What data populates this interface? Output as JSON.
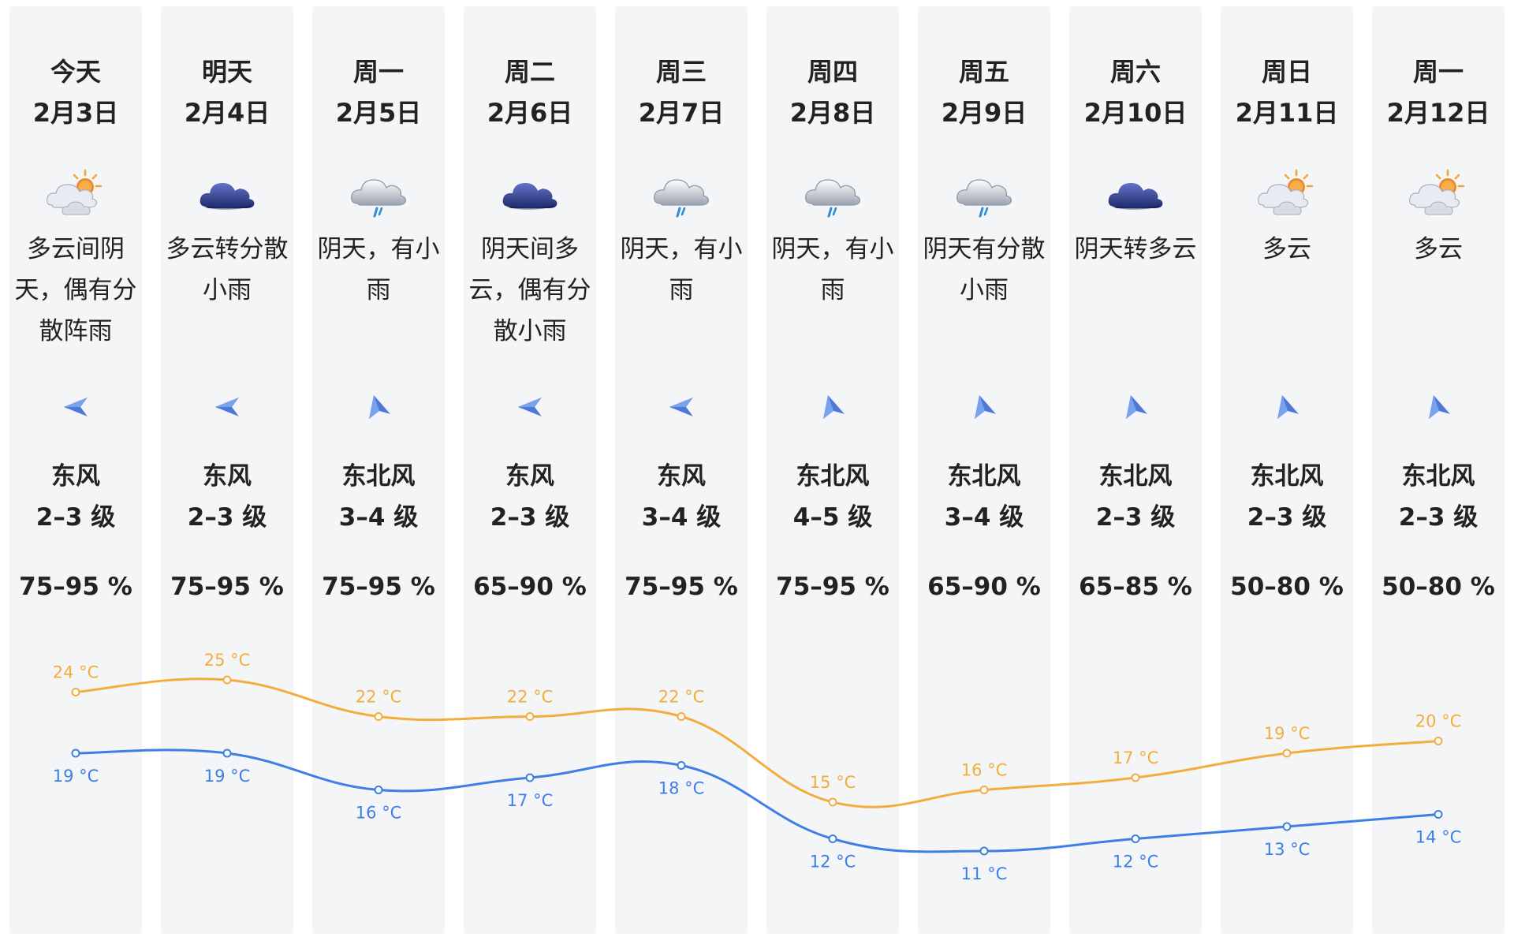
{
  "forecast": {
    "days": [
      {
        "weekday": "今天",
        "date": "2月3日",
        "icon": "partly-cloudy-sun-icon",
        "desc": [
          "多云间阴",
          "天，偶有分",
          "散阵雨"
        ],
        "wind_arrow": "wind-left-arrow-icon",
        "wind_dir": "东风",
        "wind_level": "2–3 级",
        "humidity": "75–95 %"
      },
      {
        "weekday": "明天",
        "date": "2月4日",
        "icon": "cloud-icon",
        "desc": [
          "多云转分散",
          "小雨"
        ],
        "wind_arrow": "wind-left-arrow-icon",
        "wind_dir": "东风",
        "wind_level": "2–3 级",
        "humidity": "75–95 %"
      },
      {
        "weekday": "周一",
        "date": "2月5日",
        "icon": "cloud-rain-icon",
        "desc": [
          "阴天，有小",
          "雨"
        ],
        "wind_arrow": "wind-upleft-arrow-icon",
        "wind_dir": "东北风",
        "wind_level": "3–4 级",
        "humidity": "75–95 %"
      },
      {
        "weekday": "周二",
        "date": "2月6日",
        "icon": "cloud-icon",
        "desc": [
          "阴天间多",
          "云，偶有分",
          "散小雨"
        ],
        "wind_arrow": "wind-left-arrow-icon",
        "wind_dir": "东风",
        "wind_level": "2–3 级",
        "humidity": "65–90 %"
      },
      {
        "weekday": "周三",
        "date": "2月7日",
        "icon": "cloud-rain-icon",
        "desc": [
          "阴天，有小",
          "雨"
        ],
        "wind_arrow": "wind-left-arrow-icon",
        "wind_dir": "东风",
        "wind_level": "3–4 级",
        "humidity": "75–95 %"
      },
      {
        "weekday": "周四",
        "date": "2月8日",
        "icon": "cloud-rain-icon",
        "desc": [
          "阴天，有小",
          "雨"
        ],
        "wind_arrow": "wind-upleft-arrow-icon",
        "wind_dir": "东北风",
        "wind_level": "4–5 级",
        "humidity": "75–95 %"
      },
      {
        "weekday": "周五",
        "date": "2月9日",
        "icon": "cloud-rain-icon",
        "desc": [
          "阴天有分散",
          "小雨"
        ],
        "wind_arrow": "wind-upleft-arrow-icon",
        "wind_dir": "东北风",
        "wind_level": "3–4 级",
        "humidity": "65–90 %"
      },
      {
        "weekday": "周六",
        "date": "2月10日",
        "icon": "cloud-icon",
        "desc": [
          "阴天转多云"
        ],
        "wind_arrow": "wind-upleft-arrow-icon",
        "wind_dir": "东北风",
        "wind_level": "2–3 级",
        "humidity": "65–85 %"
      },
      {
        "weekday": "周日",
        "date": "2月11日",
        "icon": "partly-cloudy-sun-icon",
        "desc": [
          "多云"
        ],
        "wind_arrow": "wind-upleft-arrow-icon",
        "wind_dir": "东北风",
        "wind_level": "2–3 级",
        "humidity": "50–80 %"
      },
      {
        "weekday": "周一",
        "date": "2月12日",
        "icon": "partly-cloudy-sun-icon",
        "desc": [
          "多云"
        ],
        "wind_arrow": "wind-upleft-arrow-icon",
        "wind_dir": "东北风",
        "wind_level": "2–3 级",
        "humidity": "50–80 %"
      }
    ]
  },
  "chart_data": {
    "type": "line",
    "categories": [
      "2月3日",
      "2月4日",
      "2月5日",
      "2月6日",
      "2月7日",
      "2月8日",
      "2月9日",
      "2月10日",
      "2月11日",
      "2月12日"
    ],
    "series": [
      {
        "values": [
          24,
          25,
          22,
          22,
          22,
          15,
          16,
          17,
          19,
          20
        ],
        "color": "#f4ad3d"
      },
      {
        "values": [
          19,
          19,
          16,
          17,
          18,
          12,
          11,
          12,
          13,
          14
        ],
        "color": "#3d7fe6"
      }
    ],
    "unit": "°C",
    "ylim": [
      11,
      25
    ],
    "grid": false,
    "legend": "none"
  }
}
